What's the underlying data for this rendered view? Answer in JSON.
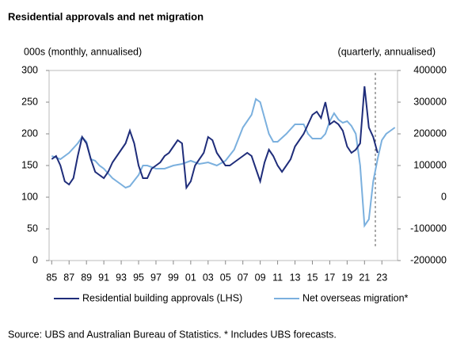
{
  "chart_data": {
    "type": "line",
    "title": "Residential approvals and net migration",
    "ylabel": "000s (monthly, annualised)",
    "y2label": "(quarterly, annualised)",
    "note": "Source: UBS and Australian Bureau of Statistics. * Includes UBS forecasts.",
    "xlim": [
      1984.7,
      2024.8
    ],
    "xticks": [
      {
        "value": 1985,
        "label": "85"
      },
      {
        "value": 1987,
        "label": "87"
      },
      {
        "value": 1989,
        "label": "89"
      },
      {
        "value": 1991,
        "label": "91"
      },
      {
        "value": 1993,
        "label": "93"
      },
      {
        "value": 1995,
        "label": "95"
      },
      {
        "value": 1997,
        "label": "97"
      },
      {
        "value": 1999,
        "label": "99"
      },
      {
        "value": 2001,
        "label": "01"
      },
      {
        "value": 2003,
        "label": "03"
      },
      {
        "value": 2005,
        "label": "05"
      },
      {
        "value": 2007,
        "label": "07"
      },
      {
        "value": 2009,
        "label": "09"
      },
      {
        "value": 2011,
        "label": "11"
      },
      {
        "value": 2013,
        "label": "13"
      },
      {
        "value": 2015,
        "label": "15"
      },
      {
        "value": 2017,
        "label": "17"
      },
      {
        "value": 2019,
        "label": "19"
      },
      {
        "value": 2021,
        "label": "21"
      },
      {
        "value": 2023,
        "label": "23"
      }
    ],
    "ylim": [
      0,
      300
    ],
    "yticks": [
      0,
      50,
      100,
      150,
      200,
      250,
      300
    ],
    "y2lim": [
      -200000,
      400000
    ],
    "y2ticks": [
      -200000,
      -100000,
      0,
      100000,
      200000,
      300000,
      400000
    ],
    "series": [
      {
        "name": "Residential building approvals (LHS)",
        "color": "#1f2d7a",
        "x": [
          1985,
          1985.5,
          1986,
          1986.5,
          1987,
          1987.5,
          1988,
          1988.5,
          1989,
          1989.5,
          1990,
          1990.5,
          1991,
          1991.5,
          1992,
          1992.5,
          1993,
          1993.5,
          1994,
          1994.5,
          1995,
          1995.5,
          1996,
          1996.5,
          1997,
          1997.5,
          1998,
          1998.5,
          1999,
          1999.5,
          2000,
          2000.5,
          2001,
          2001.5,
          2002,
          2002.5,
          2003,
          2003.5,
          2004,
          2004.5,
          2005,
          2005.5,
          2006,
          2006.5,
          2007,
          2007.5,
          2008,
          2008.5,
          2009,
          2009.5,
          2010,
          2010.5,
          2011,
          2011.5,
          2012,
          2012.5,
          2013,
          2013.5,
          2014,
          2014.5,
          2015,
          2015.5,
          2016,
          2016.5,
          2017,
          2017.5,
          2018,
          2018.5,
          2019,
          2019.5,
          2020,
          2020.5,
          2021,
          2021.5,
          2022,
          2022.5
        ],
        "values": [
          160,
          165,
          150,
          125,
          120,
          130,
          165,
          195,
          185,
          160,
          140,
          135,
          130,
          140,
          155,
          165,
          175,
          185,
          205,
          185,
          150,
          130,
          130,
          145,
          150,
          155,
          165,
          170,
          180,
          190,
          185,
          115,
          125,
          150,
          160,
          170,
          195,
          190,
          170,
          160,
          150,
          150,
          155,
          160,
          165,
          170,
          165,
          145,
          125,
          155,
          175,
          165,
          150,
          140,
          150,
          160,
          180,
          190,
          200,
          215,
          230,
          235,
          225,
          250,
          215,
          220,
          215,
          205,
          180,
          170,
          175,
          185,
          275,
          210,
          195,
          170
        ]
      },
      {
        "name": "Net overseas migration*",
        "color": "#7bb0de",
        "axis": "y2",
        "x": [
          1985,
          1986,
          1987,
          1988,
          1988.5,
          1989,
          1989.5,
          1990,
          1990.5,
          1991,
          1992,
          1993,
          1993.5,
          1994,
          1995,
          1995.5,
          1996,
          1997,
          1998,
          1999,
          2000,
          2001,
          2001.5,
          2002,
          2003,
          2004,
          2005,
          2006,
          2007,
          2008,
          2008.5,
          2009,
          2009.5,
          2010,
          2010.5,
          2011,
          2012,
          2013,
          2014,
          2014.5,
          2015,
          2016,
          2016.5,
          2017,
          2017.5,
          2018,
          2018.5,
          2019,
          2019.5,
          2020,
          2020.5,
          2021,
          2021.5,
          2022,
          2022.5,
          2023,
          2023.5,
          2024,
          2024.5
        ],
        "values": [
          130000,
          120000,
          140000,
          170000,
          190000,
          175000,
          120000,
          115000,
          100000,
          90000,
          60000,
          40000,
          30000,
          35000,
          70000,
          100000,
          100000,
          90000,
          90000,
          100000,
          105000,
          115000,
          110000,
          105000,
          110000,
          100000,
          115000,
          150000,
          220000,
          260000,
          310000,
          300000,
          250000,
          200000,
          175000,
          175000,
          200000,
          230000,
          230000,
          200000,
          185000,
          185000,
          200000,
          240000,
          265000,
          245000,
          235000,
          240000,
          225000,
          200000,
          100000,
          -90000,
          -70000,
          50000,
          120000,
          180000,
          200000,
          210000,
          220000
        ]
      }
    ]
  }
}
